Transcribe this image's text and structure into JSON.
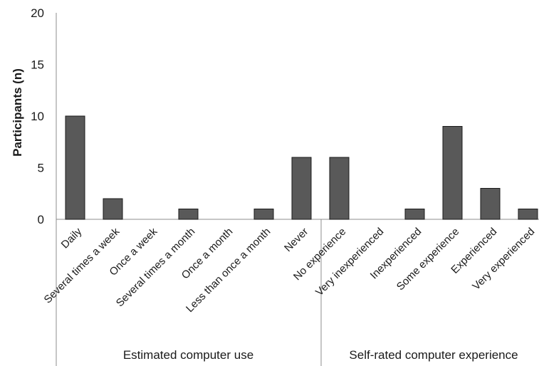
{
  "chart_data": {
    "type": "bar",
    "ylabel": "Participants (n)",
    "ylim": [
      0,
      20
    ],
    "yticks": [
      0,
      5,
      10,
      15,
      20
    ],
    "grid": false,
    "legend": false,
    "bar_color": "#595959",
    "categories": [
      "Daily",
      "Several times a week",
      "Once a week",
      "Several times a month",
      "Once a month",
      "Less than once a month",
      "Never",
      "No experience",
      "Very inexperienced",
      "Inexperienced",
      "Some experience",
      "Experienced",
      "Very experienced"
    ],
    "values": [
      10,
      2,
      0,
      1,
      0,
      1,
      6,
      6,
      0,
      1,
      9,
      3,
      1
    ],
    "groups": [
      {
        "label": "Estimated computer use",
        "count": 7
      },
      {
        "label": "Self-rated computer experience",
        "count": 6
      }
    ]
  }
}
